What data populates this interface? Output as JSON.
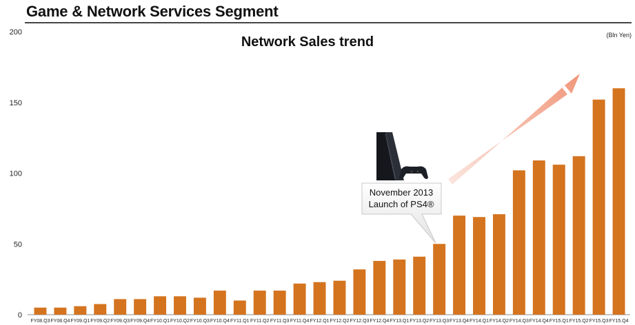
{
  "header": {
    "title": "Game & Network Services Segment"
  },
  "chart_data": {
    "type": "bar",
    "title": "Network Sales trend",
    "unit_label": "(Bln Yen)",
    "xlabel": "",
    "ylabel": "",
    "ylim": [
      0,
      200
    ],
    "yticks": [
      0,
      50,
      100,
      150,
      200
    ],
    "grid": false,
    "bar_color": "#d4741f",
    "categories": [
      "FY08.Q3",
      "FY08.Q4",
      "FY09.Q1",
      "FY09.Q2",
      "FY09.Q3",
      "FY09.Q4",
      "FY10.Q1",
      "FY10.Q2",
      "FY10.Q3",
      "FY10.Q4",
      "FY11.Q1",
      "FY11.Q2",
      "FY11.Q3",
      "FY11.Q4",
      "FY12.Q1",
      "FY12.Q2",
      "FY12.Q3",
      "FY12.Q4",
      "FY13.Q1",
      "FY13.Q2",
      "FY13.Q3",
      "FY13.Q4",
      "FY14.Q1",
      "FY14.Q2",
      "FY14.Q3",
      "FY14.Q4",
      "FY15.Q1",
      "FY15.Q2",
      "FY15.Q3",
      "FY15.Q4"
    ],
    "values": [
      5,
      5,
      6,
      7.5,
      11,
      11,
      13,
      13,
      12,
      17,
      10,
      17,
      17,
      22,
      23,
      24,
      32,
      38,
      39,
      41,
      50,
      70,
      69,
      71,
      102,
      109,
      106,
      112,
      152,
      160
    ],
    "annotation": {
      "lines": [
        "November 2013",
        "Launch of PS4®"
      ],
      "category": "FY13.Q3"
    }
  }
}
